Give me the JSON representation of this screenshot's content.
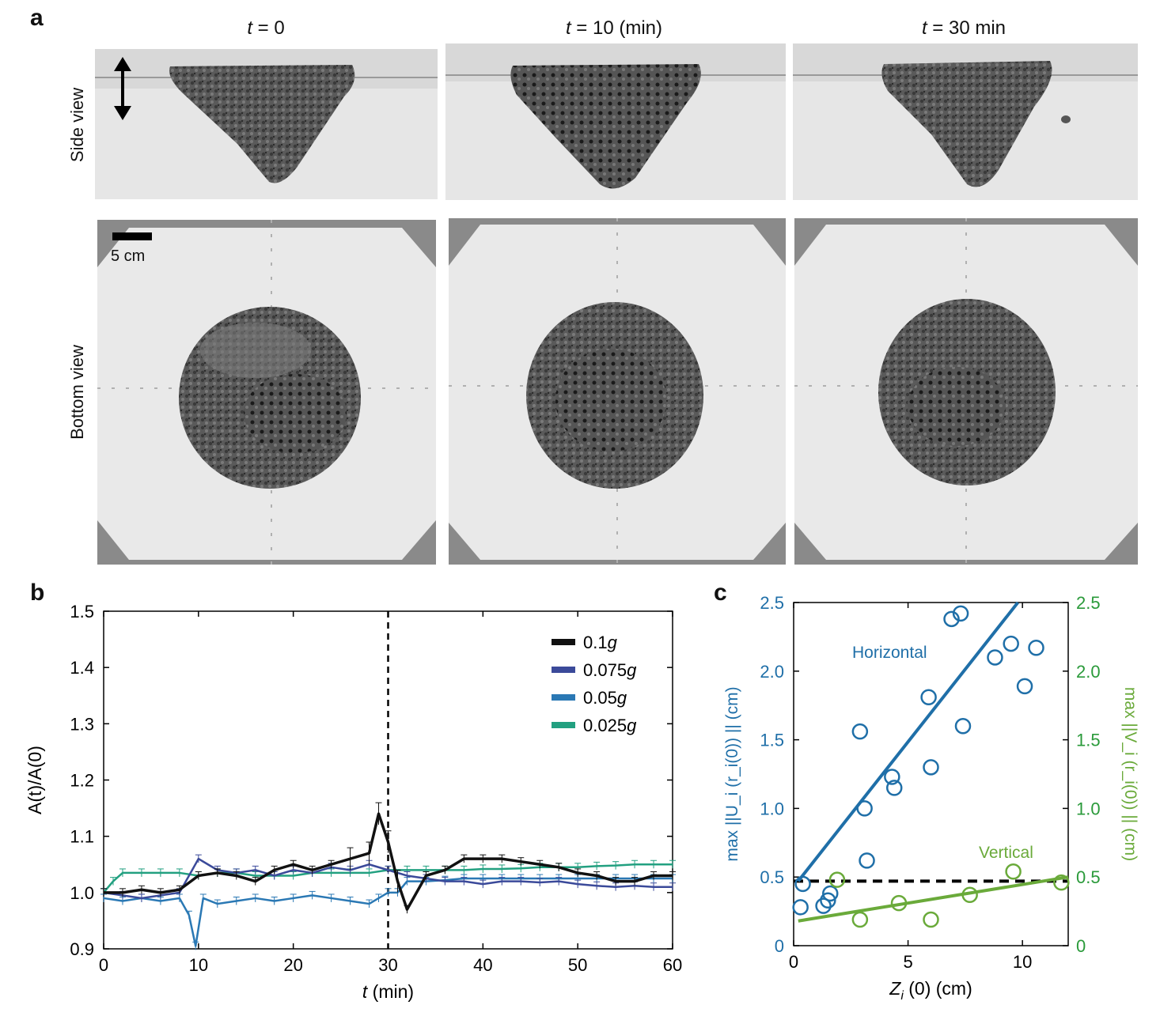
{
  "panel_a": {
    "letter": "a",
    "columns": [
      {
        "t_symbol": "t",
        "rest": " = 0"
      },
      {
        "t_symbol": "t",
        "rest": " = 10 (min)"
      },
      {
        "t_symbol": "t",
        "rest": " = 30 min"
      }
    ],
    "row_labels": {
      "side": "Side view",
      "bottom": "Bottom view"
    },
    "scale_bar_label": "5 cm"
  },
  "panel_b": {
    "letter": "b",
    "chart_data": {
      "type": "line",
      "xlabel_sym": "t",
      "xlabel_rest": " (min)",
      "ylabel": "A(t)/A(0)",
      "xlim": [
        0,
        60
      ],
      "ylim": [
        0.9,
        1.5
      ],
      "xticks": [
        "0",
        "10",
        "20",
        "30",
        "40",
        "50",
        "60"
      ],
      "yticks": [
        "0.9",
        "1.0",
        "1.1",
        "1.2",
        "1.3",
        "1.4",
        "1.5"
      ],
      "vline_x": 30,
      "legend": [
        {
          "value": "0.1",
          "sym": "g",
          "color": "#111111"
        },
        {
          "value": "0.075",
          "sym": "g",
          "color": "#3b4a9a"
        },
        {
          "value": "0.05",
          "sym": "g",
          "color": "#2a78b4"
        },
        {
          "value": "0.025",
          "sym": "g",
          "color": "#22a080"
        }
      ],
      "series": [
        {
          "name": "0.1g",
          "color": "#111111",
          "x": [
            0,
            2,
            4,
            6,
            8,
            10,
            12,
            14,
            16,
            18,
            20,
            22,
            24,
            26,
            28,
            29,
            30,
            31,
            32,
            34,
            36,
            38,
            40,
            42,
            44,
            46,
            48,
            50,
            52,
            54,
            56,
            58,
            60
          ],
          "y": [
            1.0,
            1.0,
            1.005,
            1.0,
            1.005,
            1.03,
            1.035,
            1.03,
            1.02,
            1.04,
            1.05,
            1.04,
            1.05,
            1.06,
            1.07,
            1.14,
            1.09,
            1.02,
            0.97,
            1.03,
            1.04,
            1.06,
            1.06,
            1.06,
            1.055,
            1.05,
            1.045,
            1.035,
            1.03,
            1.02,
            1.02,
            1.03,
            1.03
          ]
        },
        {
          "name": "0.075g",
          "color": "#3b4a9a",
          "x": [
            0,
            2,
            4,
            6,
            8,
            10,
            12,
            14,
            16,
            18,
            20,
            22,
            24,
            26,
            28,
            30,
            32,
            34,
            36,
            38,
            40,
            42,
            44,
            46,
            48,
            50,
            52,
            54,
            56,
            58,
            60
          ],
          "y": [
            1.0,
            0.995,
            0.99,
            0.995,
            1.0,
            1.06,
            1.04,
            1.035,
            1.04,
            1.03,
            1.04,
            1.035,
            1.045,
            1.04,
            1.05,
            1.04,
            1.03,
            1.025,
            1.02,
            1.02,
            1.015,
            1.02,
            1.02,
            1.018,
            1.02,
            1.015,
            1.012,
            1.01,
            1.012,
            1.01,
            1.01
          ]
        },
        {
          "name": "0.05g",
          "color": "#2a78b4",
          "x": [
            0,
            2,
            4,
            6,
            8,
            9,
            9.7,
            10.5,
            12,
            14,
            16,
            18,
            20,
            22,
            24,
            26,
            28,
            29,
            30,
            31,
            32,
            34,
            36,
            38,
            40,
            42,
            44,
            46,
            48,
            50,
            52,
            54,
            56,
            58,
            60
          ],
          "y": [
            0.99,
            0.985,
            0.99,
            0.985,
            0.99,
            0.96,
            0.905,
            0.99,
            0.98,
            0.985,
            0.99,
            0.985,
            0.99,
            0.995,
            0.99,
            0.985,
            0.98,
            0.99,
            1.0,
            1.0,
            1.02,
            1.02,
            1.022,
            1.025,
            1.025,
            1.025,
            1.025,
            1.025,
            1.025,
            1.025,
            1.025,
            1.025,
            1.025,
            1.025,
            1.025
          ]
        },
        {
          "name": "0.025g",
          "color": "#22a080",
          "x": [
            0,
            1,
            2,
            4,
            6,
            8,
            10,
            12,
            14,
            16,
            18,
            20,
            22,
            24,
            26,
            28,
            30,
            32,
            34,
            36,
            38,
            40,
            42,
            44,
            46,
            48,
            50,
            52,
            54,
            56,
            58,
            60
          ],
          "y": [
            1.0,
            1.02,
            1.035,
            1.035,
            1.035,
            1.035,
            1.03,
            1.035,
            1.035,
            1.03,
            1.03,
            1.03,
            1.035,
            1.035,
            1.035,
            1.035,
            1.04,
            1.04,
            1.04,
            1.04,
            1.04,
            1.042,
            1.042,
            1.043,
            1.045,
            1.045,
            1.045,
            1.047,
            1.048,
            1.05,
            1.05,
            1.05
          ]
        }
      ]
    }
  },
  "panel_c": {
    "letter": "c",
    "chart_data": {
      "type": "scatter",
      "xlabel_sym": "Z",
      "xlabel_sub": "i",
      "xlabel_rest": " (0) (cm)",
      "ylabel_left": "max ||U_i (r_i(0)) || (cm)",
      "ylabel_right": "max ||V_i (r_i(0)) || (cm)",
      "xlim": [
        0,
        12
      ],
      "ylim": [
        0,
        2.5
      ],
      "xticks": [
        "0",
        "5",
        "10"
      ],
      "yticks": [
        "0",
        "0.5",
        "1.0",
        "1.5",
        "2.0",
        "2.5"
      ],
      "dashed_y": 0.47,
      "annotations": {
        "horizontal": "Horizontal",
        "vertical": "Vertical"
      },
      "colors": {
        "horizontal": "#1f6fa8",
        "vertical": "#6aaa3a",
        "right_axis": "#2a9a3a"
      },
      "horizontal_points": [
        {
          "x": 0.3,
          "y": 0.28
        },
        {
          "x": 0.4,
          "y": 0.45
        },
        {
          "x": 1.3,
          "y": 0.29
        },
        {
          "x": 1.5,
          "y": 0.33
        },
        {
          "x": 1.6,
          "y": 0.38
        },
        {
          "x": 2.9,
          "y": 1.56
        },
        {
          "x": 3.1,
          "y": 1.0
        },
        {
          "x": 3.2,
          "y": 0.62
        },
        {
          "x": 4.3,
          "y": 1.23
        },
        {
          "x": 4.4,
          "y": 1.15
        },
        {
          "x": 5.9,
          "y": 1.81
        },
        {
          "x": 6.0,
          "y": 1.3
        },
        {
          "x": 6.9,
          "y": 2.38
        },
        {
          "x": 7.3,
          "y": 2.42
        },
        {
          "x": 7.4,
          "y": 1.6
        },
        {
          "x": 8.8,
          "y": 2.1
        },
        {
          "x": 9.5,
          "y": 2.2
        },
        {
          "x": 10.1,
          "y": 1.89
        },
        {
          "x": 10.6,
          "y": 2.17
        }
      ],
      "vertical_points": [
        {
          "x": 1.9,
          "y": 0.48
        },
        {
          "x": 2.9,
          "y": 0.19
        },
        {
          "x": 4.6,
          "y": 0.31
        },
        {
          "x": 6.0,
          "y": 0.19
        },
        {
          "x": 7.7,
          "y": 0.37
        },
        {
          "x": 9.6,
          "y": 0.54
        },
        {
          "x": 11.7,
          "y": 0.46
        }
      ],
      "horizontal_fit": {
        "x": [
          0.2,
          9.8
        ],
        "y": [
          0.47,
          2.5
        ]
      },
      "vertical_fit": {
        "x": [
          0.2,
          12
        ],
        "y": [
          0.18,
          0.5
        ]
      }
    }
  }
}
